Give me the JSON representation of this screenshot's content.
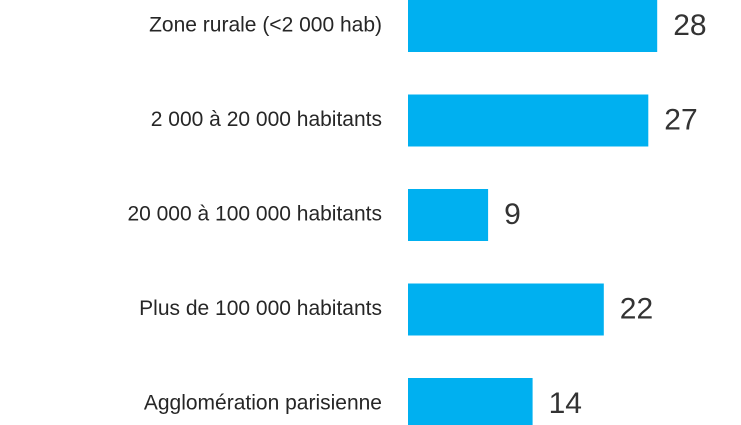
{
  "chart_data": {
    "type": "bar",
    "orientation": "horizontal",
    "categories": [
      "Zone rurale (<2 000 hab)",
      "2 000 à 20 000 habitants",
      "20 000 à 100 000 habitants",
      "Plus de 100 000 habitants",
      "Agglomération parisienne"
    ],
    "values": [
      28,
      27,
      9,
      22,
      14
    ],
    "color": "#00b0f0"
  }
}
